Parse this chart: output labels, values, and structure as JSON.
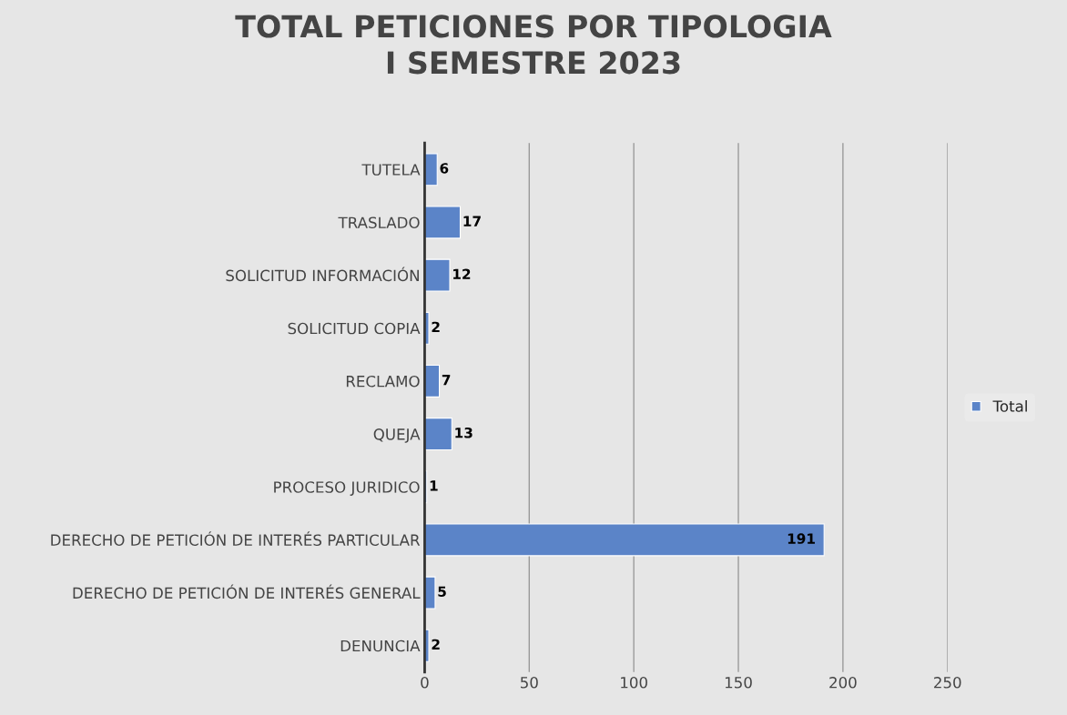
{
  "chart_data": {
    "type": "bar",
    "orientation": "horizontal",
    "title": "TOTAL PETICIONES POR TIPOLOGIA\nI SEMESTRE 2023",
    "categories": [
      "TUTELA",
      "TRASLADO",
      "SOLICITUD INFORMACIÓN",
      "SOLICITUD COPIA",
      "RECLAMO",
      "QUEJA",
      "PROCESO JURIDICO",
      "DERECHO DE PETICIÓN DE INTERÉS PARTICULAR",
      "DERECHO DE PETICIÓN DE INTERÉS GENERAL",
      "DENUNCIA"
    ],
    "series": [
      {
        "name": "Total",
        "color": "#5b84c8",
        "values": [
          6,
          17,
          12,
          2,
          7,
          13,
          1,
          191,
          5,
          2
        ]
      }
    ],
    "xlim": [
      0,
      250
    ],
    "xticks": [
      0,
      50,
      100,
      150,
      200,
      250
    ],
    "grid": "x",
    "legend": "right",
    "data_labels": true
  }
}
